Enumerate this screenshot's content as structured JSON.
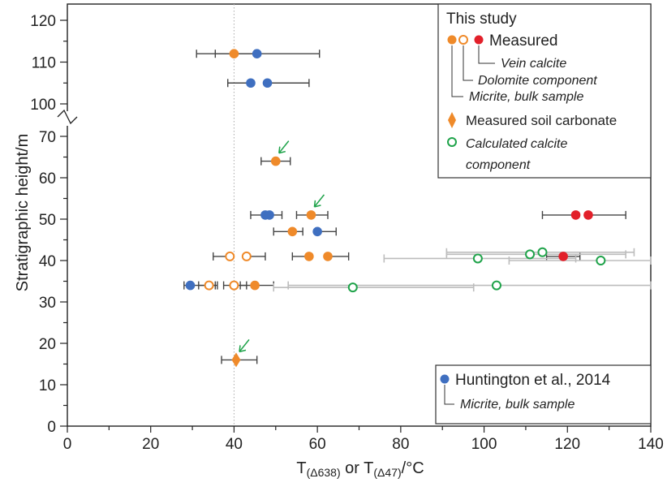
{
  "chart_data": {
    "type": "scatter",
    "title": "",
    "xlabel": {
      "main": "T",
      "sub1": "(Δ638)",
      "mid": " or T",
      "sub2": "(Δ47)",
      "unit": "/°C"
    },
    "ylabel": "Stratigraphic height/m",
    "xlim": [
      0,
      140
    ],
    "x_ticks": [
      "0",
      "20",
      "40",
      "60",
      "80",
      "100",
      "120",
      "140"
    ],
    "x_tick_values": [
      0,
      20,
      40,
      60,
      80,
      100,
      120,
      140
    ],
    "ylim_lower": [
      0,
      70
    ],
    "ylim_upper": [
      100,
      120
    ],
    "y_axis_break": "between 70 and 100",
    "y_ticks": [
      "0",
      "10",
      "20",
      "30",
      "40",
      "50",
      "60",
      "70",
      "100",
      "110",
      "120"
    ],
    "y_tick_values": [
      0,
      10,
      20,
      30,
      40,
      50,
      60,
      70,
      100,
      110,
      120
    ],
    "reference_line_x": 40,
    "grid": false,
    "series": [
      {
        "name": "Micrite, bulk sample",
        "marker": "filled circle",
        "color": "#ef8a2a",
        "points": [
          {
            "x": 40,
            "y": 112,
            "xerr": [
              9,
              5
            ]
          },
          {
            "x": 50,
            "y": 64,
            "xerr": [
              3.5,
              3.5
            ]
          },
          {
            "x": 58.5,
            "y": 51,
            "xerr": [
              3.5,
              4
            ]
          },
          {
            "x": 54,
            "y": 47,
            "xerr": [
              4.5,
              2.5
            ]
          },
          {
            "x": 58,
            "y": 41,
            "xerr": [
              4,
              0
            ]
          },
          {
            "x": 62.5,
            "y": 41,
            "xerr": [
              0,
              5
            ]
          },
          {
            "x": 45,
            "y": 34,
            "xerr": [
              3.5,
              4.5
            ]
          }
        ]
      },
      {
        "name": "Dolomite component",
        "marker": "open circle",
        "color": "#ef8a2a",
        "points": [
          {
            "x": 39,
            "y": 41,
            "xerr": [
              4,
              0
            ]
          },
          {
            "x": 43,
            "y": 41,
            "xerr": [
              0,
              4.5
            ]
          },
          {
            "x": 34,
            "y": 34,
            "xerr": [
              2.5,
              2
            ]
          },
          {
            "x": 40,
            "y": 34,
            "xerr": [
              2.5,
              3
            ]
          }
        ]
      },
      {
        "name": "Vein calcite",
        "marker": "filled circle",
        "color": "#e2202a",
        "points": [
          {
            "x": 122,
            "y": 51,
            "xerr": [
              8,
              0
            ]
          },
          {
            "x": 125,
            "y": 51,
            "xerr": [
              0,
              9
            ]
          },
          {
            "x": 119,
            "y": 41,
            "xerr": [
              4,
              4
            ]
          }
        ]
      },
      {
        "name": "Huntington et al., 2014",
        "marker": "filled circle",
        "color": "#3f6fc0",
        "points": [
          {
            "x": 45.5,
            "y": 112,
            "xerr": [
              10,
              15
            ]
          },
          {
            "x": 44,
            "y": 105,
            "xerr": [
              5.5,
              0
            ]
          },
          {
            "x": 48,
            "y": 105,
            "xerr": [
              0,
              10
            ]
          },
          {
            "x": 47.5,
            "y": 51,
            "xerr": [
              3.5,
              0
            ]
          },
          {
            "x": 48.5,
            "y": 51,
            "xerr": [
              0,
              3
            ]
          },
          {
            "x": 60,
            "y": 47,
            "xerr": [
              0,
              4.5
            ]
          },
          {
            "x": 29.5,
            "y": 34,
            "xerr": [
              1.5,
              6
            ]
          }
        ]
      },
      {
        "name": "Measured soil carbonate",
        "marker": "diamond",
        "color": "#ef8a2a",
        "points": [
          {
            "x": 40.5,
            "y": 16,
            "xerr": [
              3.5,
              5
            ]
          }
        ]
      },
      {
        "name": "Calculated calcite component",
        "marker": "open circle",
        "color": "#1fa34a",
        "points": [
          {
            "x": 68.5,
            "y": 33.5,
            "xerr": [
              19,
              29
            ]
          },
          {
            "x": 103,
            "y": 34,
            "xerr": [
              50,
              37
            ]
          },
          {
            "x": 98.5,
            "y": 40.5,
            "xerr": [
              22.5,
              23.5
            ]
          },
          {
            "x": 111,
            "y": 41.5,
            "xerr": [
              20,
              23
            ]
          },
          {
            "x": 114,
            "y": 42,
            "xerr": [
              23,
              22
            ]
          },
          {
            "x": 128,
            "y": 40,
            "xerr": [
              22,
              12
            ]
          }
        ]
      }
    ],
    "arrows_at": [
      {
        "x": 50,
        "y": 64
      },
      {
        "x": 58.5,
        "y": 51
      },
      {
        "x": 40.5,
        "y": 16
      }
    ],
    "colors": {
      "orange": "#ef8a2a",
      "red": "#e2202a",
      "blue": "#3f6fc0",
      "green": "#1fa34a",
      "errorbar": "#444444",
      "errorbar_light": "#bdbdbd",
      "refline": "#aaaaaa"
    },
    "legend": {
      "placement": "top-right",
      "heading": "This study",
      "measured": "Measured",
      "vein": "Vein calcite",
      "dolomite": "Dolomite component",
      "micrite": "Micrite, bulk sample",
      "soil": "Measured soil carbonate",
      "calc_line1": "Calculated calcite",
      "calc_line2": "component"
    },
    "legend2": {
      "placement": "bottom-right",
      "name": "Huntington et al., 2014",
      "sub": "Micrite, bulk sample"
    }
  }
}
